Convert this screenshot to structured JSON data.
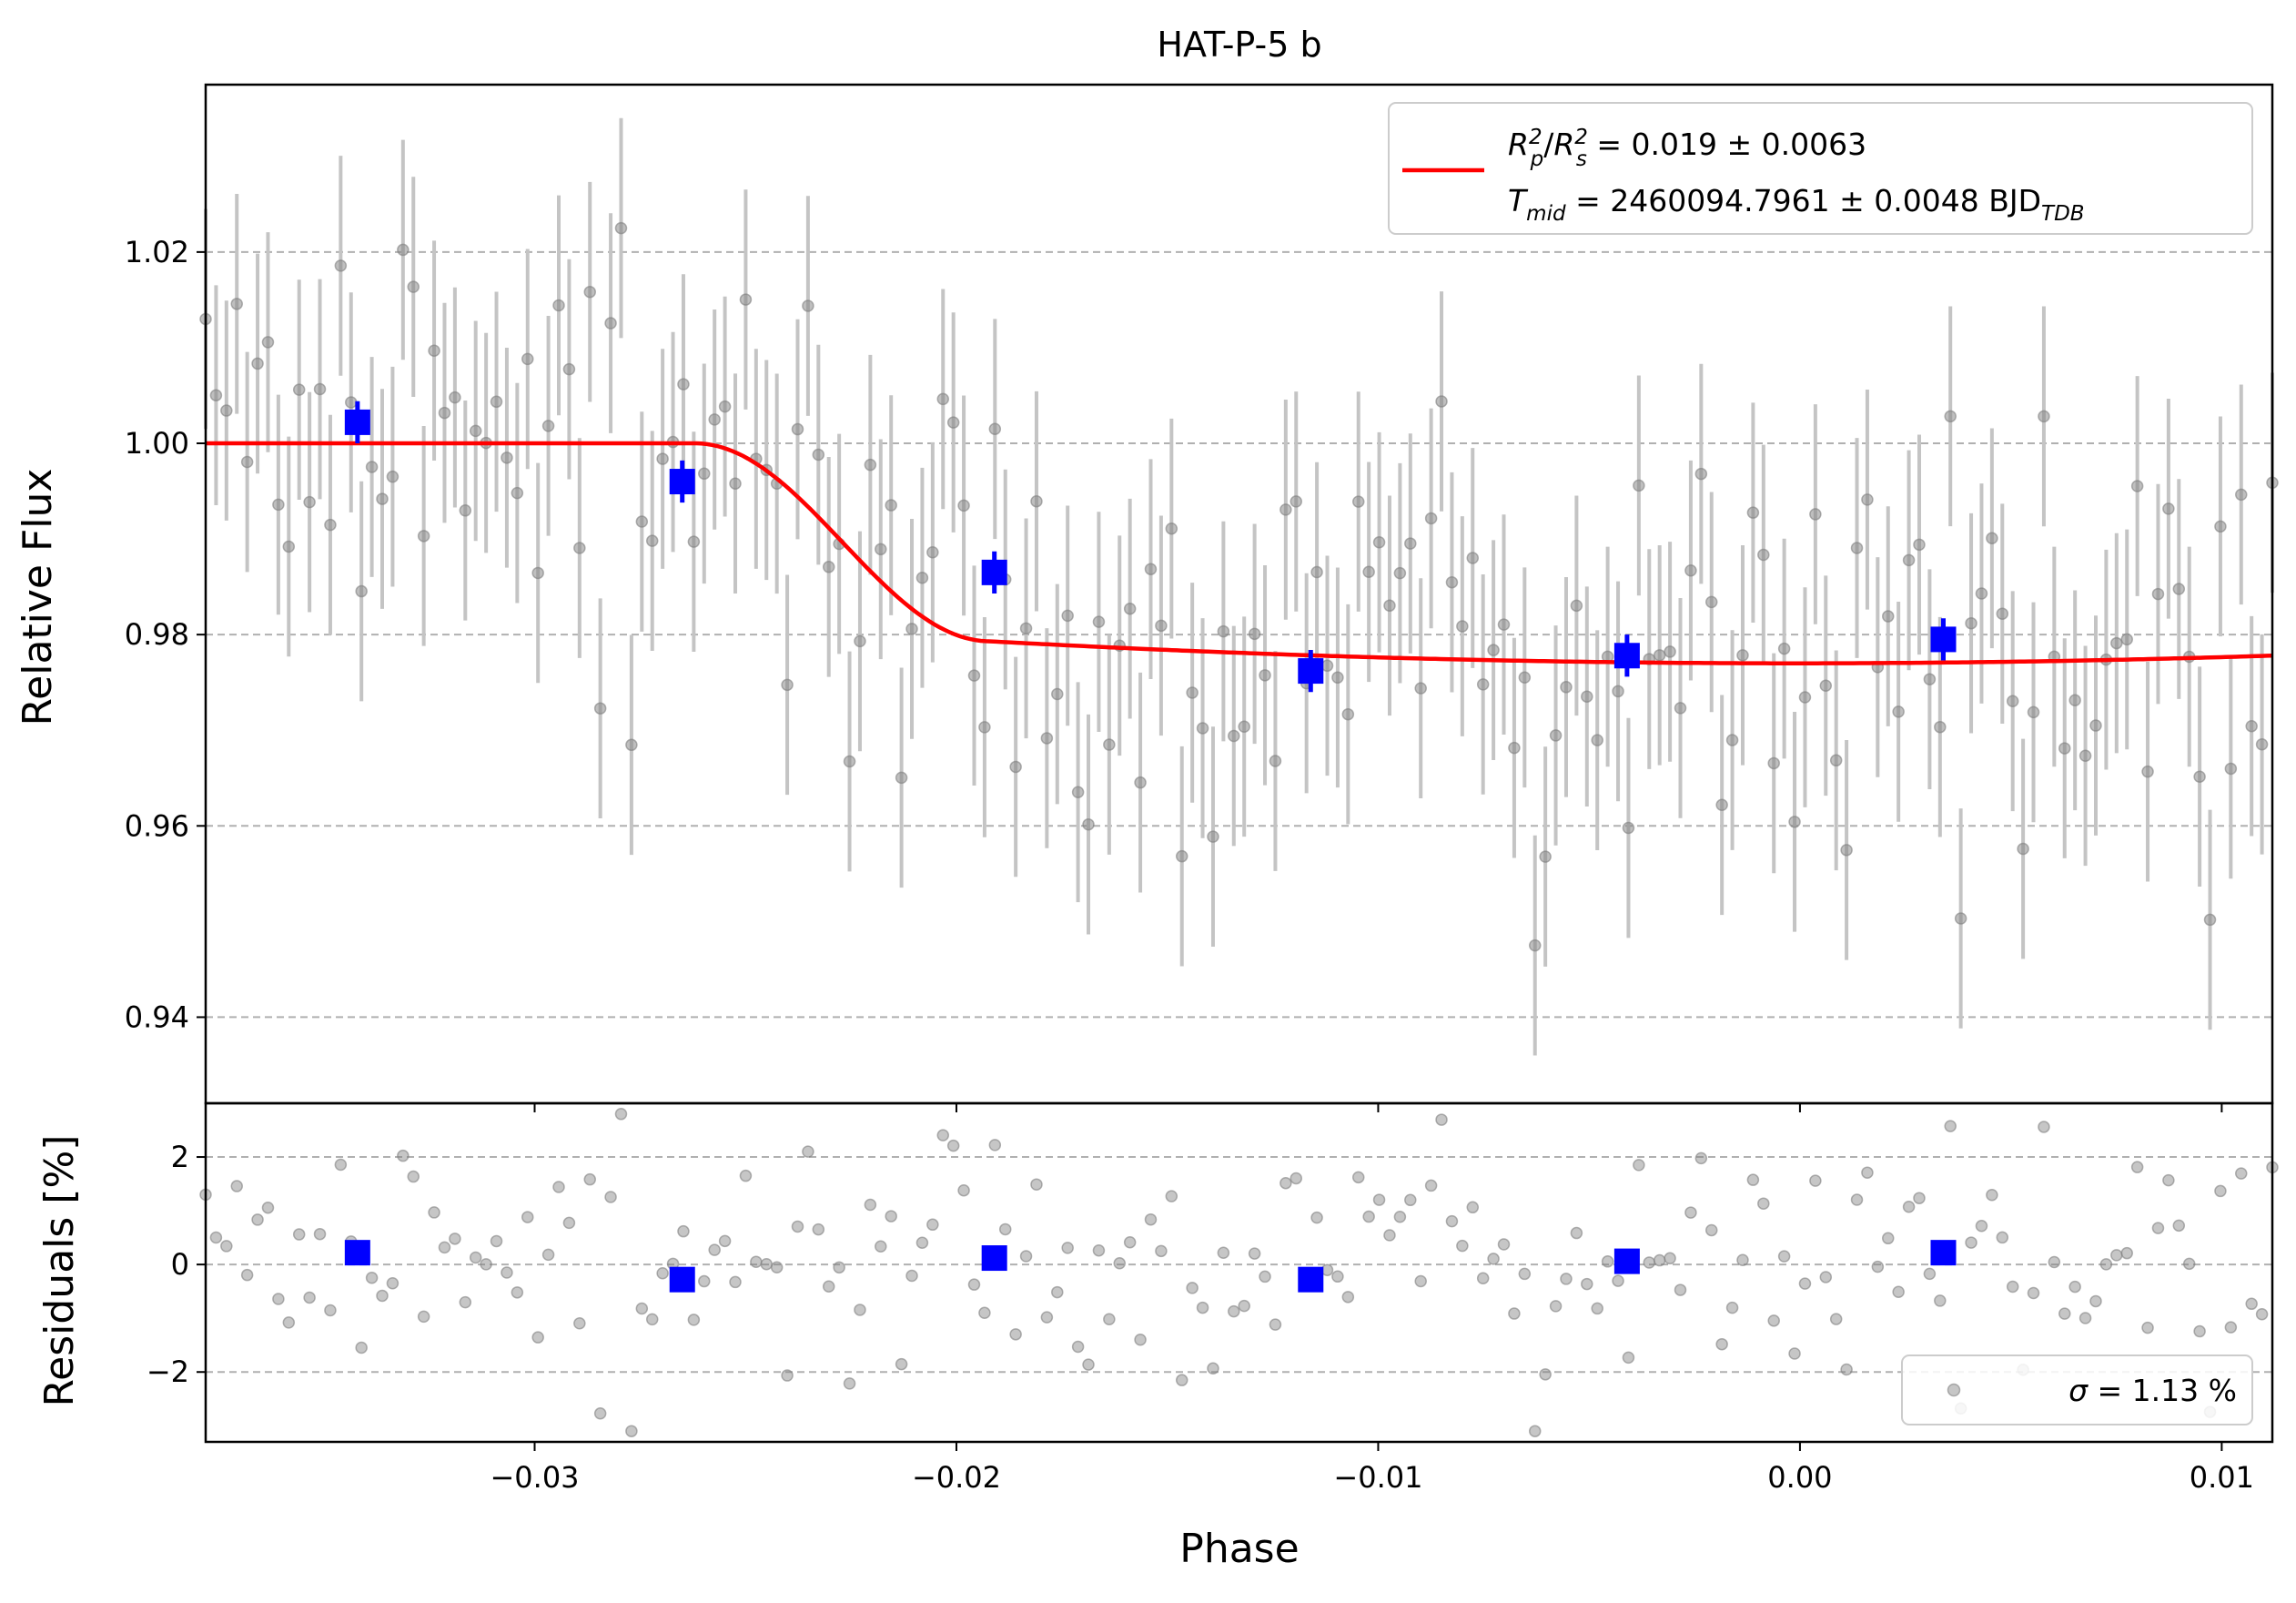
{
  "chart_data": [
    {
      "type": "scatter",
      "panel": "top",
      "title": "HAT-P-5 b",
      "xlabel": "",
      "ylabel": "Relative Flux",
      "xlim": [
        -0.0378,
        0.0112
      ],
      "ylim": [
        0.931,
        1.0375
      ],
      "x_ticks": [
        -0.03,
        -0.02,
        -0.01,
        0.0,
        0.01
      ],
      "y_ticks": [
        0.94,
        0.96,
        0.98,
        1.0,
        1.02
      ],
      "y_tick_labels": [
        "0.94",
        "0.96",
        "0.98",
        "1.00",
        "1.02"
      ],
      "grid": "y-dashed",
      "legend_position": "top-right",
      "legend": {
        "model_line_1": "R_p^2/R_s^2 = 0.019 ± 0.0063",
        "model_line_2": "T_mid = 2460094.7961 ± 0.0048 BJD_TDB",
        "line1": {
          "r_sym": "R",
          "r_sub": "p",
          "sup": "2",
          "sep": "/",
          "s_sym": "R",
          "s_sub": "s",
          "sup2": "2",
          "value": " = 0.019 ± 0.0063"
        },
        "line2": {
          "t_sym": "T",
          "t_sub": "mid",
          "value": " = 2460094.7961 ± 0.0048 BJD",
          "unit_sub": "TDB"
        }
      },
      "model": {
        "color": "#ff0000",
        "baseline": 1.0,
        "depth": 0.023,
        "ingress_start": -0.0262,
        "ingress_end": -0.0192,
        "center": -0.0001,
        "shape_note": "limb-darkened transit curve"
      },
      "raw_series": {
        "color": "#808080",
        "x_start": -0.0378,
        "x_end": 0.0112,
        "n_points": 200,
        "error": 0.0115
      },
      "binned_series": {
        "color": "#0000ff",
        "x": [
          -0.0342,
          -0.0265,
          -0.0191,
          -0.0116,
          -0.0041,
          0.0034
        ],
        "y": [
          1.0022,
          0.996,
          0.9865,
          0.9762,
          0.9778,
          0.9795
        ],
        "yerr": [
          0.0022,
          0.0022,
          0.0022,
          0.0022,
          0.0022,
          0.0022
        ]
      }
    },
    {
      "type": "scatter",
      "panel": "bottom",
      "title": "",
      "xlabel": "Phase",
      "ylabel": "Residuals [%]",
      "xlim": [
        -0.0378,
        0.0112
      ],
      "ylim": [
        -3.3,
        3.0
      ],
      "x_ticks": [
        -0.03,
        -0.02,
        -0.01,
        0.0,
        0.01
      ],
      "x_tick_labels": [
        "−0.03",
        "−0.02",
        "−0.01",
        "0.00",
        "0.01"
      ],
      "y_ticks": [
        -2,
        0,
        2
      ],
      "y_tick_labels": [
        "−2",
        "0",
        "2"
      ],
      "grid": "y-dashed",
      "legend_position": "bottom-right",
      "legend": {
        "sigma_symbol": "σ",
        "sigma_text": " = 1.13 %"
      },
      "binned_series": {
        "color": "#0000ff",
        "x": [
          -0.0342,
          -0.0265,
          -0.0191,
          -0.0116,
          -0.0041,
          0.0034
        ],
        "y": [
          0.22,
          -0.28,
          0.12,
          -0.28,
          0.06,
          0.22
        ]
      }
    }
  ]
}
